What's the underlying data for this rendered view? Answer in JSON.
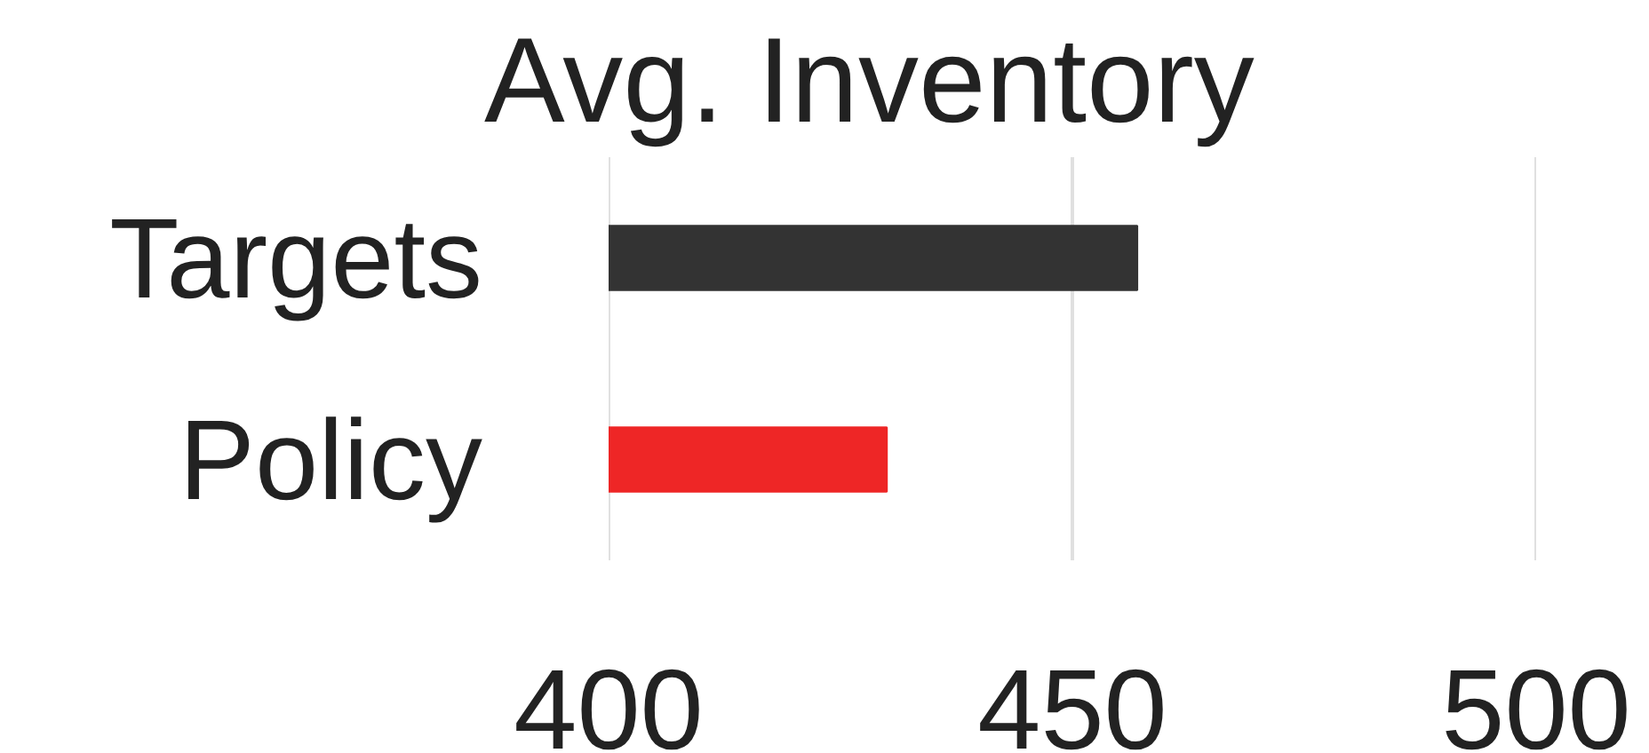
{
  "chart_data": {
    "type": "bar",
    "orientation": "horizontal",
    "title": "Avg. Inventory",
    "categories": [
      "Targets",
      "Policy"
    ],
    "values": [
      457,
      430
    ],
    "colors": [
      "#333333",
      "#ee2626"
    ],
    "xlim": [
      400,
      500
    ],
    "xticks": [
      400,
      450,
      500
    ],
    "grid": "x",
    "legend": false
  }
}
